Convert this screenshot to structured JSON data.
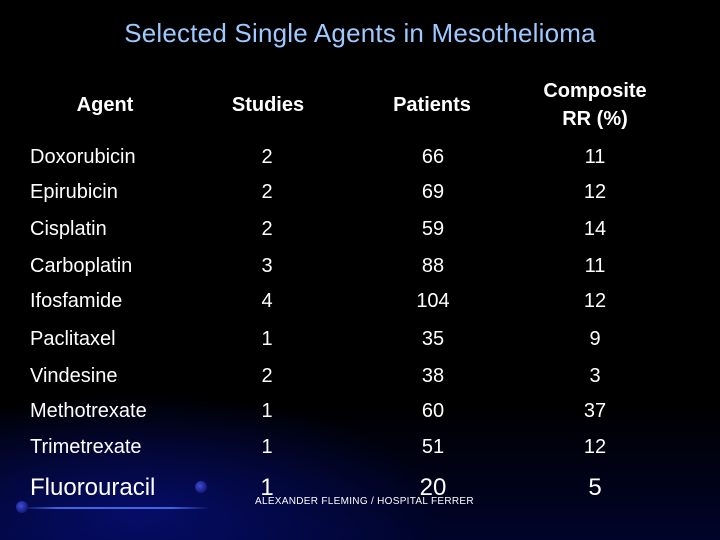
{
  "title": "Selected Single Agents in Mesothelioma",
  "headers": {
    "agent": "Agent",
    "studies": "Studies",
    "patients": "Patients",
    "rr_line1": "Composite",
    "rr_line2": "RR (%)"
  },
  "rows": [
    {
      "agent": "Doxorubicin",
      "studies": "2",
      "patients": "66",
      "rr": "11"
    },
    {
      "agent": "Epirubicin",
      "studies": "2",
      "patients": "69",
      "rr": "12"
    },
    {
      "agent": "Cisplatin",
      "studies": "2",
      "patients": "59",
      "rr": "14"
    },
    {
      "agent": "Carboplatin",
      "studies": "3",
      "patients": "88",
      "rr": "11"
    },
    {
      "agent": "Ifosfamide",
      "studies": "4",
      "patients": "104",
      "rr": "12"
    },
    {
      "agent": "Paclitaxel",
      "studies": "1",
      "patients": "35",
      "rr": "9"
    },
    {
      "agent": "Vindesine",
      "studies": "2",
      "patients": "38",
      "rr": "3"
    },
    {
      "agent": "Methotrexate",
      "studies": "1",
      "patients": "60",
      "rr": "37"
    },
    {
      "agent": "Trimetrexate",
      "studies": "1",
      "patients": "51",
      "rr": "12"
    },
    {
      "agent": "Fluorouracil",
      "studies": "1",
      "patients": "20",
      "rr": "5"
    }
  ],
  "footer": "ALEXANDER FLEMING / HOSPITAL FERRER",
  "colors": {
    "title": "#9ec9ff",
    "text": "#ffffff",
    "background": "#000000",
    "accent": "#3a4fd8"
  }
}
